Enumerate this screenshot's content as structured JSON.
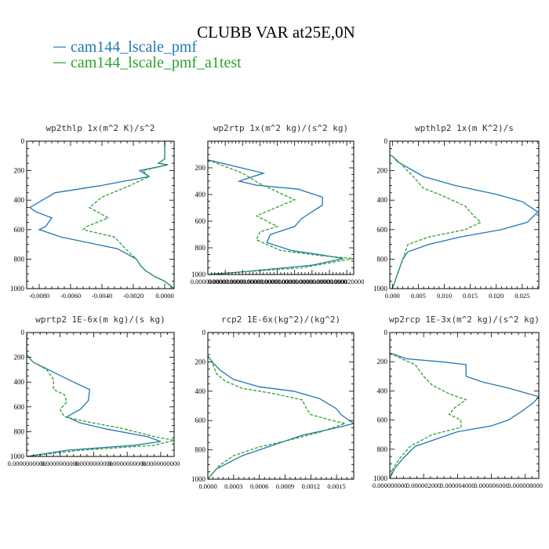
{
  "figure": {
    "title": "CLUBB VAR at25E,0N",
    "legend": [
      {
        "label": "cam144_lscale_pmf",
        "color": "#1f77b4",
        "dash": "solid"
      },
      {
        "label": "cam144_lscale_pmf_a1test",
        "color": "#2ca02c",
        "dash": "dashed"
      }
    ]
  },
  "chart_data": [
    {
      "type": "line",
      "title": "wp2thlp  1x(m^2 K)/s^2",
      "ylim": [
        1000,
        0
      ],
      "yticks": [
        0,
        200,
        400,
        600,
        800,
        1000
      ],
      "xlim": [
        -0.0088,
        0.0006
      ],
      "xticks": [
        -0.008,
        -0.006,
        -0.004,
        -0.002,
        0.0
      ],
      "xticklabels": [
        "-0.0080",
        "-0.0060",
        "-0.0040",
        "-0.0020",
        "0.0000"
      ],
      "series": [
        {
          "values": [
            [
              0.0,
              0
            ],
            [
              0.0,
              120
            ],
            [
              -0.0004,
              150
            ],
            [
              0.0002,
              160
            ],
            [
              -0.0016,
              200
            ],
            [
              -0.001,
              240
            ],
            [
              -0.004,
              300
            ],
            [
              -0.007,
              350
            ],
            [
              -0.0086,
              450
            ],
            [
              -0.0082,
              480
            ],
            [
              -0.0072,
              520
            ],
            [
              -0.0076,
              580
            ],
            [
              -0.008,
              600
            ],
            [
              -0.0066,
              650
            ],
            [
              -0.003,
              730
            ],
            [
              -0.0018,
              800
            ],
            [
              -0.0015,
              850
            ],
            [
              -0.0012,
              880
            ],
            [
              -0.0006,
              920
            ],
            [
              0.0,
              950
            ],
            [
              0.0006,
              1000
            ]
          ]
        },
        {
          "values": [
            [
              0.0,
              0
            ],
            [
              0.0,
              120
            ],
            [
              -0.0004,
              150
            ],
            [
              0.0002,
              160
            ],
            [
              -0.0014,
              200
            ],
            [
              -0.001,
              240
            ],
            [
              -0.0022,
              300
            ],
            [
              -0.004,
              380
            ],
            [
              -0.0048,
              450
            ],
            [
              -0.0036,
              520
            ],
            [
              -0.005,
              580
            ],
            [
              -0.0052,
              600
            ],
            [
              -0.0032,
              650
            ],
            [
              -0.0025,
              730
            ],
            [
              -0.0018,
              800
            ],
            [
              -0.0015,
              850
            ],
            [
              -0.0012,
              880
            ],
            [
              -0.0006,
              920
            ],
            [
              0.0,
              950
            ],
            [
              0.0006,
              1000
            ]
          ]
        }
      ]
    },
    {
      "type": "line",
      "title": "wp2rtp  1x(m^2 kg)/(s^2 kg)",
      "ylim": [
        1000,
        0
      ],
      "yticks": [
        200,
        400,
        600,
        800,
        1000
      ],
      "xlim": [
        0.0,
        2.1e-05
      ],
      "xticks": [
        0.0,
        2.5e-06,
        5e-06,
        7.5e-06,
        1e-05,
        1.25e-05,
        1.5e-05,
        1.75e-05,
        2e-05
      ],
      "xticklabels": [
        "0.000000000",
        "0.000000000",
        "0.000000000",
        "0.000000000",
        "0.000000000",
        "0.000000000",
        "0.000000000",
        "0.000000000",
        "0.000020000"
      ],
      "series": [
        {
          "values": [
            [
              0.0,
              140
            ],
            [
              8e-06,
              240
            ],
            [
              4.5e-06,
              300
            ],
            [
              7e-06,
              330
            ],
            [
              1.3e-05,
              360
            ],
            [
              1.65e-05,
              420
            ],
            [
              1.65e-05,
              480
            ],
            [
              1.35e-05,
              580
            ],
            [
              1.25e-05,
              640
            ],
            [
              9e-06,
              700
            ],
            [
              8.5e-06,
              760
            ],
            [
              1.2e-05,
              820
            ],
            [
              1.6e-05,
              850
            ],
            [
              1.95e-05,
              880
            ],
            [
              1.5e-05,
              930
            ],
            [
              5e-06,
              980
            ],
            [
              0.0,
              1000
            ]
          ]
        },
        {
          "values": [
            [
              0.0,
              140
            ],
            [
              5e-06,
              240
            ],
            [
              7.5e-06,
              320
            ],
            [
              1.25e-05,
              440
            ],
            [
              7e-06,
              560
            ],
            [
              1e-05,
              640
            ],
            [
              7.5e-06,
              680
            ],
            [
              7e-06,
              740
            ],
            [
              1.05e-05,
              820
            ],
            [
              1.65e-05,
              860
            ],
            [
              2.1e-05,
              880
            ],
            [
              1.35e-05,
              950
            ],
            [
              5e-06,
              980
            ],
            [
              0.0,
              1000
            ]
          ]
        }
      ]
    },
    {
      "type": "line",
      "title": "wpthlp2  1x(m K^2)/s",
      "ylim": [
        1000,
        0
      ],
      "yticks": [
        0,
        200,
        400,
        600,
        800,
        1000
      ],
      "xlim": [
        -0.0005,
        0.0282
      ],
      "xticks": [
        0.0,
        0.005,
        0.01,
        0.015,
        0.02,
        0.025
      ],
      "xticklabels": [
        "0.000",
        "0.005",
        "0.010",
        "0.015",
        "0.020",
        "0.025"
      ],
      "series": [
        {
          "values": [
            [
              0.0,
              100
            ],
            [
              0.001,
              140
            ],
            [
              0.003,
              180
            ],
            [
              0.006,
              240
            ],
            [
              0.012,
              300
            ],
            [
              0.02,
              360
            ],
            [
              0.025,
              410
            ],
            [
              0.028,
              480
            ],
            [
              0.026,
              550
            ],
            [
              0.021,
              600
            ],
            [
              0.013,
              650
            ],
            [
              0.007,
              700
            ],
            [
              0.003,
              750
            ],
            [
              0.002,
              800
            ],
            [
              0.001,
              900
            ],
            [
              0.0,
              1000
            ]
          ]
        },
        {
          "values": [
            [
              0.0,
              100
            ],
            [
              0.0015,
              150
            ],
            [
              0.004,
              240
            ],
            [
              0.006,
              320
            ],
            [
              0.009,
              360
            ],
            [
              0.014,
              440
            ],
            [
              0.0155,
              500
            ],
            [
              0.017,
              550
            ],
            [
              0.014,
              600
            ],
            [
              0.007,
              650
            ],
            [
              0.003,
              700
            ],
            [
              0.002,
              800
            ],
            [
              0.001,
              900
            ],
            [
              0.0,
              1000
            ]
          ]
        }
      ]
    },
    {
      "type": "line",
      "title": "wprtp2  1E-6x(m kg)/(s kg)",
      "ylim": [
        1000,
        0
      ],
      "yticks": [
        0,
        200,
        400,
        600,
        800,
        1000
      ],
      "xlim": [
        0.0,
        1.1e-07
      ],
      "xticks": [
        0.0,
        2.5e-08,
        5e-08,
        7.5e-08,
        1e-07
      ],
      "xticklabels": [
        "0.0000000000",
        "0.0000000000",
        "0.0000000000",
        "0.0000000000",
        "0.0000000000"
      ],
      "series": [
        {
          "values": [
            [
              0.0,
              0
            ],
            [
              0.0,
              180
            ],
            [
              5e-09,
              240
            ],
            [
              2e-08,
              320
            ],
            [
              3.5e-08,
              400
            ],
            [
              4.7e-08,
              460
            ],
            [
              4.6e-08,
              550
            ],
            [
              4e-08,
              620
            ],
            [
              3e-08,
              680
            ],
            [
              4e-08,
              730
            ],
            [
              6e-08,
              780
            ],
            [
              9e-08,
              840
            ],
            [
              1e-07,
              880
            ],
            [
              8e-08,
              910
            ],
            [
              3e-08,
              950
            ],
            [
              0.0,
              1000
            ]
          ]
        },
        {
          "values": [
            [
              0.0,
              0
            ],
            [
              0.0,
              180
            ],
            [
              5e-09,
              240
            ],
            [
              1.5e-08,
              300
            ],
            [
              2e-08,
              380
            ],
            [
              2e-08,
              460
            ],
            [
              2.8e-08,
              500
            ],
            [
              3e-08,
              560
            ],
            [
              2.5e-08,
              620
            ],
            [
              2.8e-08,
              680
            ],
            [
              4.5e-08,
              720
            ],
            [
              7e-08,
              770
            ],
            [
              9.5e-08,
              840
            ],
            [
              1.1e-07,
              870
            ],
            [
              9.5e-08,
              910
            ],
            [
              4e-08,
              950
            ],
            [
              0.0,
              1000
            ]
          ]
        }
      ]
    },
    {
      "type": "line",
      "title": "rcp2  1E-6x(kg^2)/(kg^2)",
      "ylim": [
        1000,
        0
      ],
      "yticks": [
        0,
        200,
        400,
        600,
        800,
        1000
      ],
      "xlim": [
        0.0,
        0.0017
      ],
      "xticks": [
        0.0,
        0.0003,
        0.0006,
        0.0009,
        0.0012,
        0.0015
      ],
      "xticklabels": [
        "0.0000",
        "0.0003",
        "0.0006",
        "0.0009",
        "0.0012",
        "0.0015"
      ],
      "series": [
        {
          "values": [
            [
              0.0,
              160
            ],
            [
              5e-05,
              200
            ],
            [
              0.00015,
              260
            ],
            [
              0.0003,
              320
            ],
            [
              0.0006,
              370
            ],
            [
              0.001,
              400
            ],
            [
              0.0013,
              450
            ],
            [
              0.0015,
              520
            ],
            [
              0.00155,
              560
            ],
            [
              0.0017,
              620
            ],
            [
              0.0015,
              650
            ],
            [
              0.0011,
              700
            ],
            [
              0.0008,
              760
            ],
            [
              0.0004,
              840
            ],
            [
              0.0002,
              900
            ],
            [
              0.0001,
              930
            ],
            [
              0.0,
              1000
            ]
          ]
        },
        {
          "values": [
            [
              0.0,
              160
            ],
            [
              5e-05,
              200
            ],
            [
              0.0001,
              280
            ],
            [
              0.0002,
              330
            ],
            [
              0.0004,
              380
            ],
            [
              0.0008,
              420
            ],
            [
              0.0011,
              460
            ],
            [
              0.00115,
              520
            ],
            [
              0.0012,
              560
            ],
            [
              0.00145,
              600
            ],
            [
              0.0016,
              620
            ],
            [
              0.0013,
              680
            ],
            [
              0.0009,
              740
            ],
            [
              0.0006,
              780
            ],
            [
              0.0003,
              840
            ],
            [
              0.00015,
              900
            ],
            [
              0.0001,
              930
            ],
            [
              0.0,
              1000
            ]
          ]
        }
      ]
    },
    {
      "type": "line",
      "title": "wp2rcp  1E-3x(m^2 kg)/(s^2 kg)",
      "ylim": [
        1000,
        0
      ],
      "yticks": [
        0,
        200,
        400,
        600,
        800,
        1000
      ],
      "xlim": [
        0.0,
        8.8e-06
      ],
      "xticks": [
        0.0,
        2e-06,
        4e-06,
        6e-06,
        8e-06
      ],
      "xticklabels": [
        "0.000000000",
        "0.000002000",
        "0.000004000",
        "0.000006000",
        "0.000008000"
      ],
      "series": [
        {
          "values": [
            [
              0.0,
              140
            ],
            [
              1e-06,
              180
            ],
            [
              3e-06,
              200
            ],
            [
              4.5e-06,
              220
            ],
            [
              4.5e-06,
              300
            ],
            [
              5.5e-06,
              340
            ],
            [
              7e-06,
              380
            ],
            [
              8.8e-06,
              440
            ],
            [
              8.5e-06,
              480
            ],
            [
              7.8e-06,
              540
            ],
            [
              7e-06,
              600
            ],
            [
              6e-06,
              640
            ],
            [
              4e-06,
              680
            ],
            [
              3e-06,
              720
            ],
            [
              1.5e-06,
              780
            ],
            [
              8e-07,
              860
            ],
            [
              3e-07,
              930
            ],
            [
              0.0,
              1000
            ]
          ]
        },
        {
          "values": [
            [
              0.0,
              140
            ],
            [
              7e-07,
              180
            ],
            [
              1.5e-06,
              220
            ],
            [
              2e-06,
              300
            ],
            [
              2.5e-06,
              360
            ],
            [
              3.5e-06,
              420
            ],
            [
              4.5e-06,
              460
            ],
            [
              3.8e-06,
              520
            ],
            [
              3.5e-06,
              560
            ],
            [
              4.2e-06,
              600
            ],
            [
              4.2e-06,
              650
            ],
            [
              2.5e-06,
              700
            ],
            [
              1.2e-06,
              780
            ],
            [
              6e-07,
              860
            ],
            [
              2e-07,
              930
            ],
            [
              0.0,
              1000
            ]
          ]
        }
      ]
    }
  ]
}
